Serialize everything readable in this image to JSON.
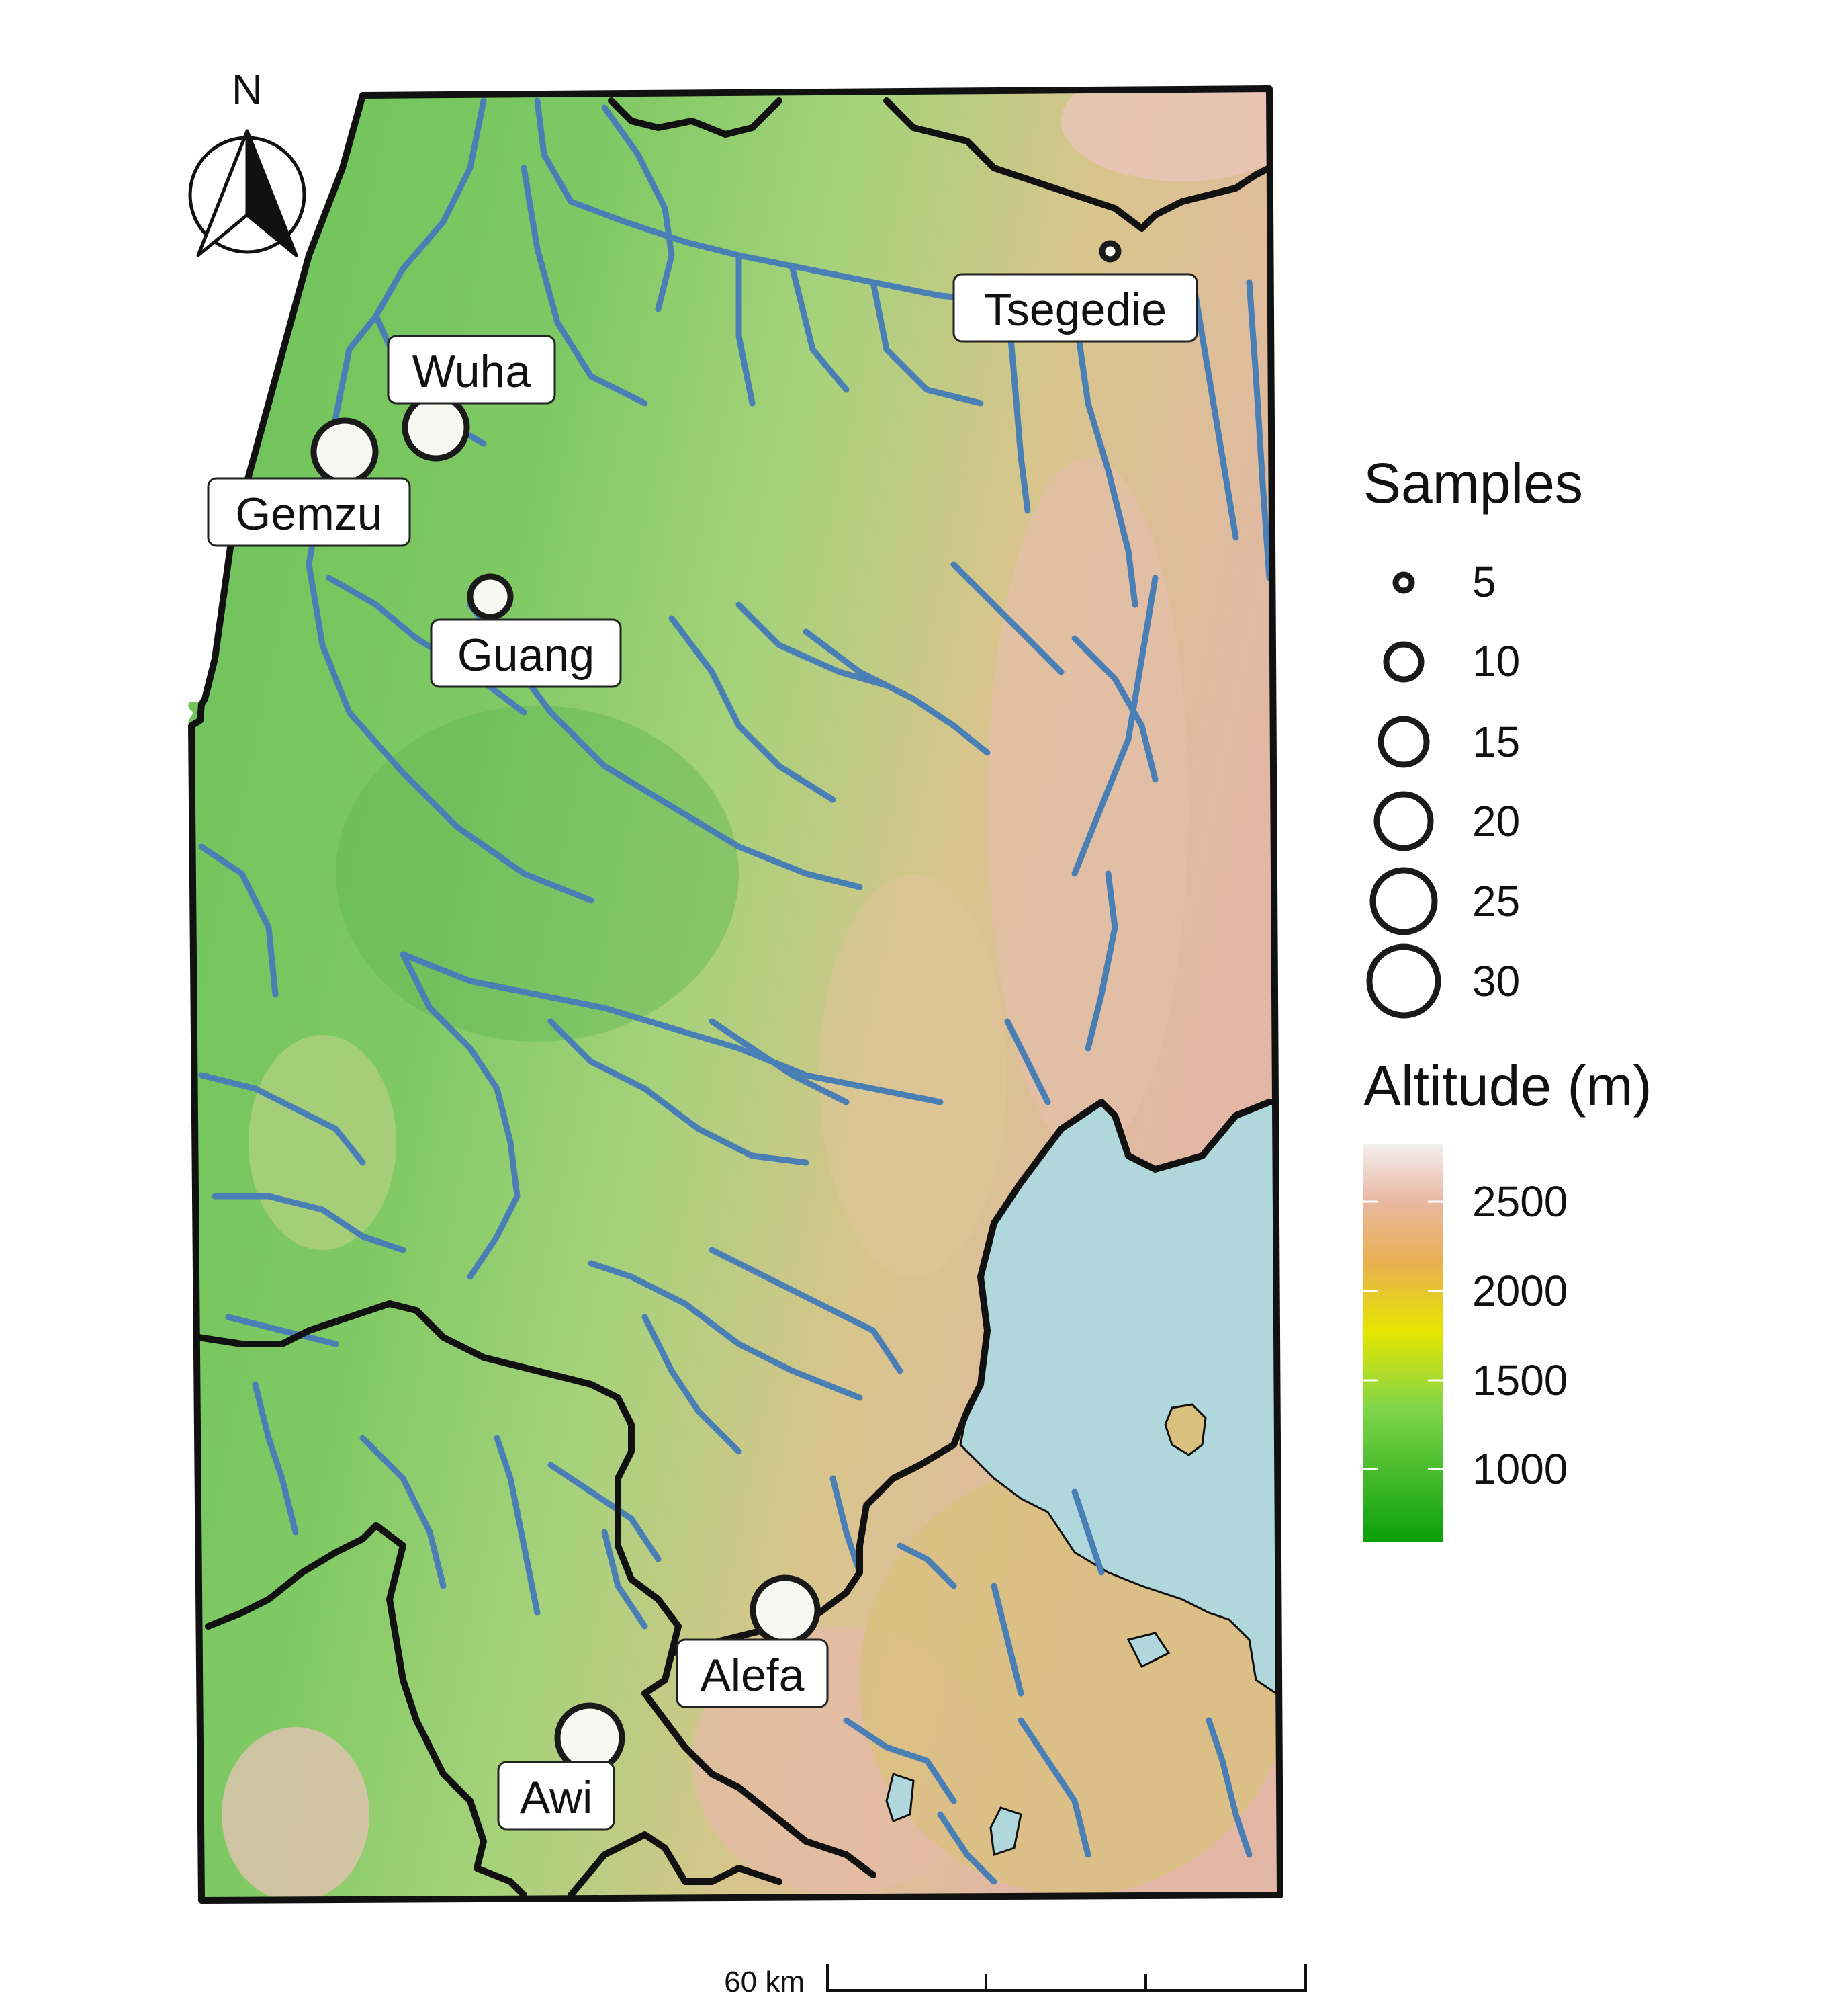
{
  "map": {
    "north_arrow_label": "N",
    "sites": [
      {
        "name": "Tsegedie",
        "samples": 3
      },
      {
        "name": "Wuha",
        "samples": 27
      },
      {
        "name": "Gemzu",
        "samples": 28
      },
      {
        "name": "Guang",
        "samples": 12
      },
      {
        "name": "Alefa",
        "samples": 30
      },
      {
        "name": "Awi",
        "samples": 30
      }
    ],
    "scale_bar_label": "60 km",
    "colors": {
      "river": "#4a7fb5",
      "lake": "#b0d8dc",
      "border": "#111111",
      "lowland": "#7cc55e",
      "highland": "#d8c089"
    }
  },
  "legend": {
    "samples_title": "Samples",
    "sample_sizes": [
      "5",
      "10",
      "15",
      "20",
      "25",
      "30"
    ],
    "altitude_title": "Altitude (m)",
    "altitude_ticks": [
      "2500",
      "2000",
      "1500",
      "1000"
    ]
  }
}
